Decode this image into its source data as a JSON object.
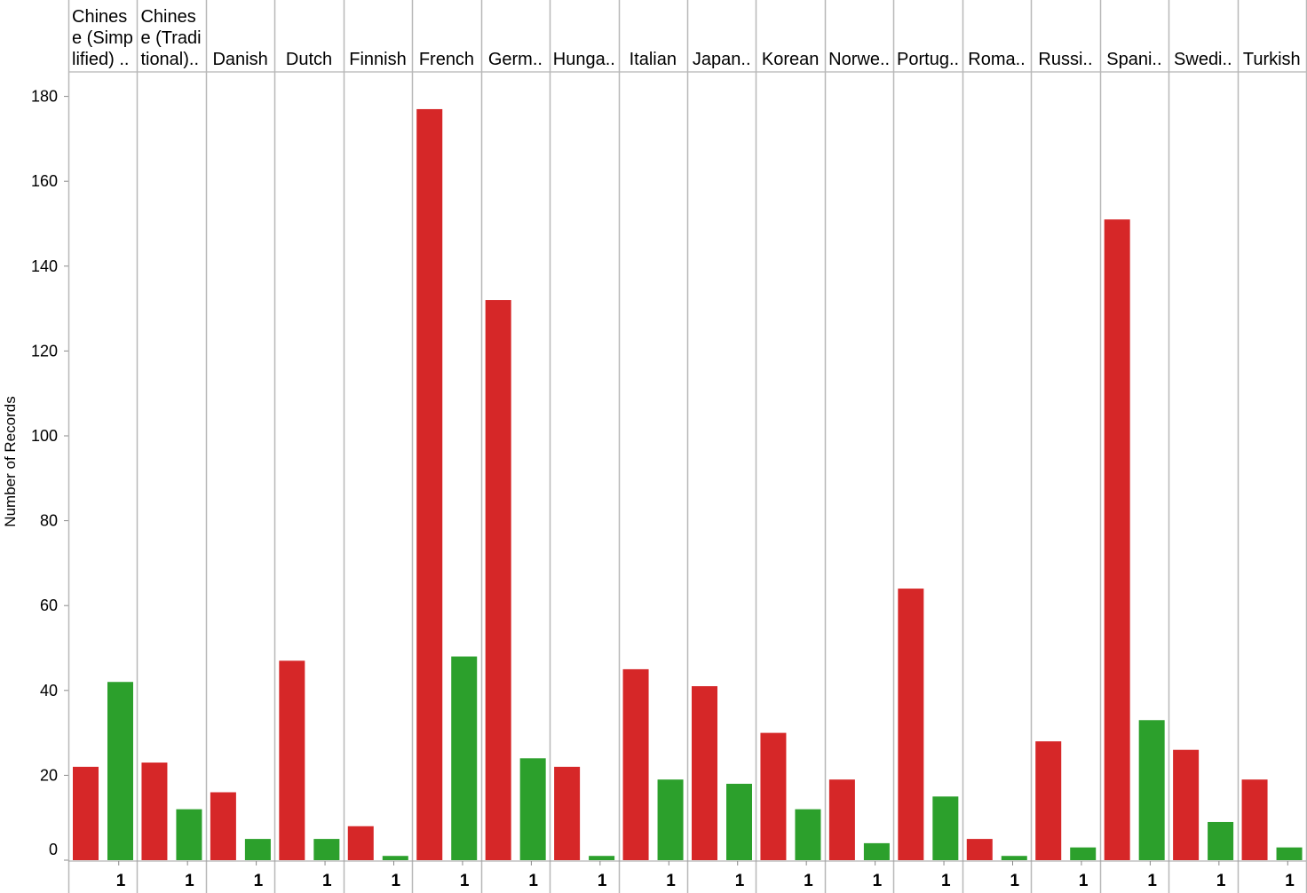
{
  "chart_data": {
    "type": "bar",
    "ylabel": "Number of Records",
    "ylim": [
      0,
      185
    ],
    "yticks": [
      0,
      20,
      40,
      60,
      80,
      100,
      120,
      140,
      160,
      180
    ],
    "x_tick_label": "1",
    "colors": [
      "#d62728",
      "#2ca02c"
    ],
    "categories": [
      {
        "lines": [
          "Chines",
          "e (Simp",
          "lified) .."
        ]
      },
      {
        "lines": [
          "Chines",
          "e (Tradi",
          "tional).."
        ]
      },
      {
        "lines": [
          "Danish"
        ]
      },
      {
        "lines": [
          "Dutch"
        ]
      },
      {
        "lines": [
          "Finnish"
        ]
      },
      {
        "lines": [
          "French"
        ]
      },
      {
        "lines": [
          "Germ.."
        ]
      },
      {
        "lines": [
          "Hunga.."
        ]
      },
      {
        "lines": [
          "Italian"
        ]
      },
      {
        "lines": [
          "Japan.."
        ]
      },
      {
        "lines": [
          "Korean"
        ]
      },
      {
        "lines": [
          "Norwe.."
        ]
      },
      {
        "lines": [
          "Portug.."
        ]
      },
      {
        "lines": [
          "Roma.."
        ]
      },
      {
        "lines": [
          "Russi.."
        ]
      },
      {
        "lines": [
          "Spani.."
        ]
      },
      {
        "lines": [
          "Swedi.."
        ]
      },
      {
        "lines": [
          "Turkish"
        ]
      }
    ],
    "series": [
      {
        "values": [
          22,
          23,
          16,
          47,
          8,
          177,
          132,
          22,
          45,
          41,
          30,
          19,
          64,
          5,
          28,
          151,
          26,
          19
        ]
      },
      {
        "values": [
          42,
          12,
          5,
          5,
          1,
          48,
          24,
          1,
          19,
          18,
          12,
          4,
          15,
          1,
          3,
          33,
          9,
          3
        ]
      }
    ]
  }
}
